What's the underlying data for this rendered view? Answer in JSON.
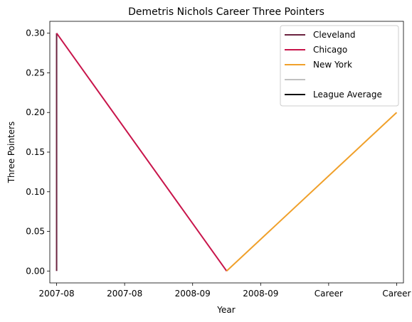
{
  "chart_data": {
    "type": "line",
    "title": "Demetris Nichols Career Three Pointers",
    "xlabel": "Year",
    "ylabel": "Three Pointers",
    "x_tick_labels": [
      "2007-08",
      "2007-08",
      "2008-09",
      "2008-09",
      "Career",
      "Career"
    ],
    "x_range": [
      -0.1,
      5.1
    ],
    "ylim": [
      -0.015,
      0.315
    ],
    "y_ticks": [
      0.0,
      0.05,
      0.1,
      0.15,
      0.2,
      0.25,
      0.3
    ],
    "y_tick_labels": [
      "0.00",
      "0.05",
      "0.10",
      "0.15",
      "0.20",
      "0.25",
      "0.30"
    ],
    "grid": false,
    "legend_position": "top-right",
    "series": [
      {
        "name": "Cleveland",
        "color": "#6b2340",
        "x": [
          0,
          0
        ],
        "y": [
          0.0,
          0.3
        ]
      },
      {
        "name": "Chicago",
        "color": "#c8144a",
        "x": [
          0,
          2.5
        ],
        "y": [
          0.3,
          0.0
        ]
      },
      {
        "name": "New York",
        "color": "#f0a02a",
        "x": [
          2.5,
          5
        ],
        "y": [
          0.0,
          0.2
        ]
      },
      {
        "name": "",
        "color": "#c0c0c0",
        "x": [],
        "y": []
      },
      {
        "name": "League Average",
        "color": "#000000",
        "x": [],
        "y": []
      }
    ]
  }
}
